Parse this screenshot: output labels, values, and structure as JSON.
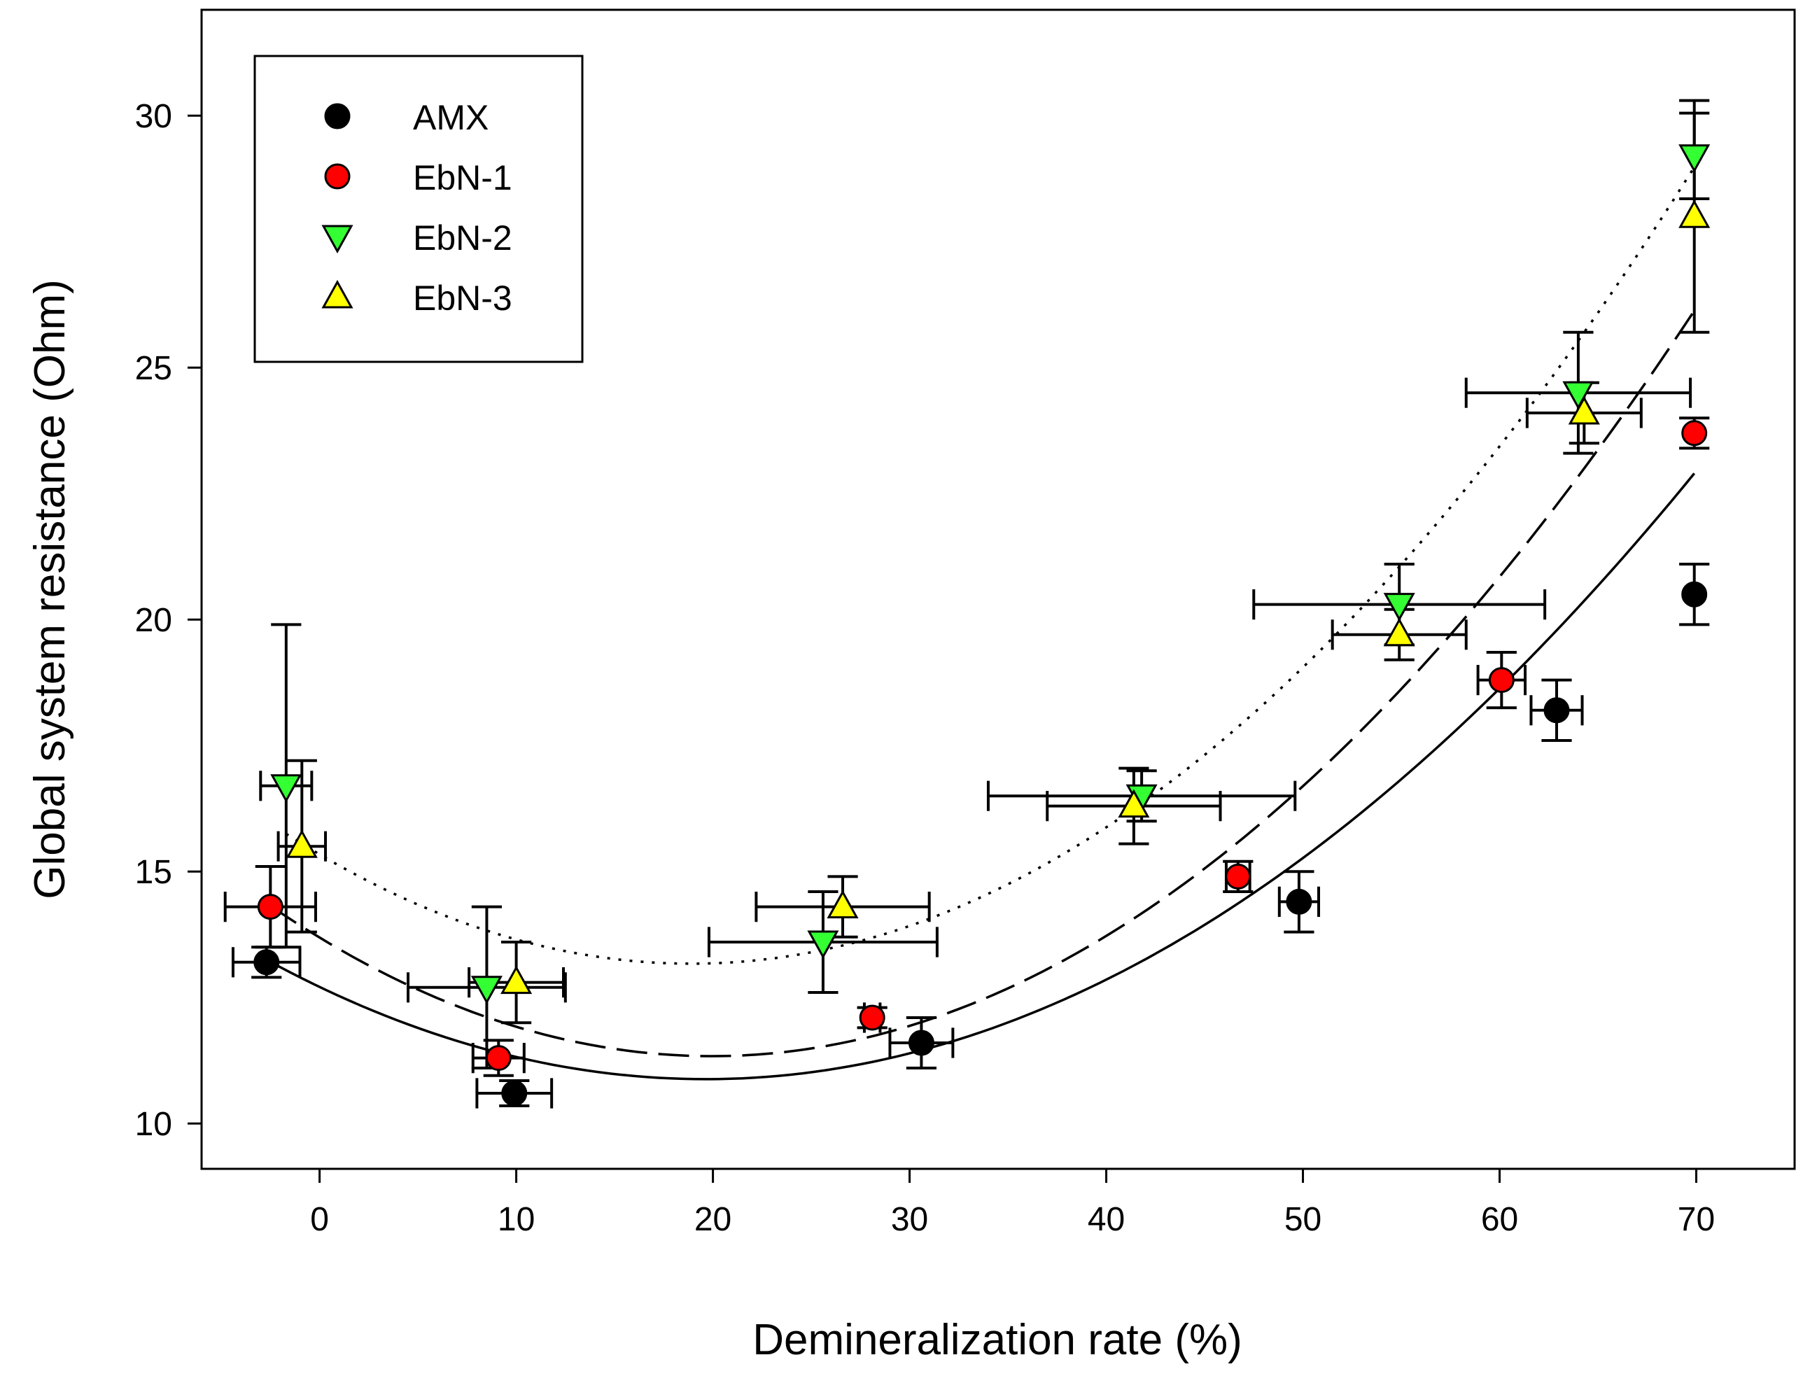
{
  "chart_data": {
    "type": "scatter",
    "title": "",
    "xlabel": "Demineralization rate (%)",
    "ylabel": "Global system resistance (Ohm)",
    "xlim": [
      -6,
      75
    ],
    "ylim": [
      9.1,
      32.1
    ],
    "xticks": [
      0,
      10,
      20,
      30,
      40,
      50,
      60,
      70
    ],
    "yticks": [
      10,
      15,
      20,
      25,
      30
    ],
    "legend_position": "top-left",
    "series": [
      {
        "name": "AMX",
        "marker": "circle",
        "color": "#000000",
        "points": [
          {
            "x": -2.7,
            "y": 13.2,
            "xerr": 1.7,
            "yerr": 0.3
          },
          {
            "x": 9.9,
            "y": 10.6,
            "xerr": 1.9,
            "yerr": 0.25
          },
          {
            "x": 30.6,
            "y": 11.6,
            "xerr": 1.6,
            "yerr": 0.5
          },
          {
            "x": 49.8,
            "y": 14.4,
            "xerr": 1.0,
            "yerr": 0.6
          },
          {
            "x": 62.9,
            "y": 18.2,
            "xerr": 1.3,
            "yerr": 0.6
          },
          {
            "x": 69.9,
            "y": 20.5,
            "xerr": 0.0,
            "yerr": 0.6
          }
        ],
        "fit": {
          "style": "solid",
          "coeffs": [
            12.71,
            -0.1866,
            0.004755
          ]
        }
      },
      {
        "name": "EbN-1",
        "marker": "circle",
        "color": "#ff0000",
        "points": [
          {
            "x": -2.5,
            "y": 14.3,
            "xerr": 2.3,
            "yerr": 0.8
          },
          {
            "x": 9.1,
            "y": 11.3,
            "xerr": 1.3,
            "yerr": 0.35
          },
          {
            "x": 28.1,
            "y": 12.1,
            "xerr": 0.4,
            "yerr": 0.2
          },
          {
            "x": 46.7,
            "y": 14.9,
            "xerr": 0.6,
            "yerr": 0.3
          },
          {
            "x": 60.1,
            "y": 18.8,
            "xerr": 1.2,
            "yerr": 0.55
          },
          {
            "x": 69.9,
            "y": 23.7,
            "xerr": 0.0,
            "yerr": 0.3
          }
        ],
        "fit": {
          "style": "dashed",
          "coeffs": [
            13.69,
            -0.2362,
            0.005925
          ]
        }
      },
      {
        "name": "EbN-2",
        "marker": "triangle-down",
        "color": "#33ff33",
        "points": [
          {
            "x": -1.7,
            "y": 16.7,
            "xerr": 1.3,
            "yerr": 3.2
          },
          {
            "x": 8.5,
            "y": 12.7,
            "xerr": 4.0,
            "yerr": 1.6
          },
          {
            "x": 25.6,
            "y": 13.6,
            "xerr": 5.8,
            "yerr": 1.0
          },
          {
            "x": 41.8,
            "y": 16.5,
            "xerr": 7.8,
            "yerr": 0.5
          },
          {
            "x": 54.9,
            "y": 20.3,
            "xerr": 7.4,
            "yerr": 0.8
          },
          {
            "x": 64.0,
            "y": 24.5,
            "xerr": 5.7,
            "yerr": 1.2
          },
          {
            "x": 69.9,
            "y": 29.2,
            "xerr": 0.0,
            "yerr": 0.85
          }
        ],
        "fit": {
          "style": "dotted",
          "coeffs": [
            15.34,
            -0.2296,
            0.006076
          ]
        }
      },
      {
        "name": "EbN-3",
        "marker": "triangle-up",
        "color": "#ffff00",
        "points": [
          {
            "x": -0.9,
            "y": 15.5,
            "xerr": 1.2,
            "yerr": 1.7
          },
          {
            "x": 10.0,
            "y": 12.8,
            "xerr": 2.4,
            "yerr": 0.8
          },
          {
            "x": 26.6,
            "y": 14.3,
            "xerr": 4.4,
            "yerr": 0.6
          },
          {
            "x": 41.4,
            "y": 16.3,
            "xerr": 4.4,
            "yerr": 0.75
          },
          {
            "x": 54.9,
            "y": 19.7,
            "xerr": 3.4,
            "yerr": 0.5
          },
          {
            "x": 64.3,
            "y": 24.1,
            "xerr": 2.9,
            "yerr": 0.6
          },
          {
            "x": 69.9,
            "y": 28.0,
            "xerr": 0.0,
            "yerr": 2.3
          }
        ]
      }
    ]
  }
}
